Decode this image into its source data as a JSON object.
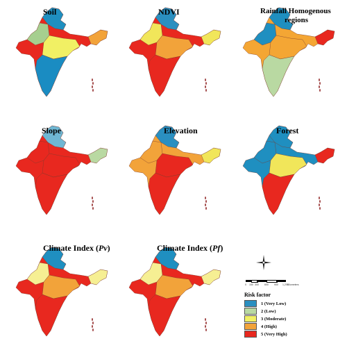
{
  "panels": [
    {
      "id": "soil",
      "title": "Soil",
      "base": "#e8281f",
      "north": "#1f8fc0",
      "northwest": "#a6cf8f",
      "mid": "#f1f064",
      "south": "#1a8cc2",
      "accent": "#f2a33a"
    },
    {
      "id": "ndvi",
      "title": "NDVI",
      "base": "#e8281f",
      "north": "#2a8fc0",
      "northwest": "#f1e65a",
      "mid": "#f2a33a",
      "south": "#e8281f",
      "accent": "#f1e65a"
    },
    {
      "id": "rainfall",
      "title_line1": "Rainfall Homogenous",
      "title_line2": "regions",
      "base": "#f4a634",
      "north": "#1f8fc0",
      "northwest": "#1f8fc0",
      "mid": "#f4a634",
      "south": "#b9d9a2",
      "accent": "#e8281f"
    },
    {
      "id": "slope",
      "title": "Slope",
      "base": "#e8281f",
      "north": "#6fb7d3",
      "northwest": "#e8281f",
      "mid": "#e8281f",
      "south": "#e8281f",
      "accent": "#b9d9a2"
    },
    {
      "id": "elevation",
      "title": "Elevation",
      "base": "#f2a33a",
      "north": "#2a8fc0",
      "northwest": "#f2a33a",
      "mid": "#e8281f",
      "south": "#e8281f",
      "accent": "#f1e65a"
    },
    {
      "id": "forest",
      "title": "Forest",
      "base": "#1f8fc0",
      "north": "#1f8fc0",
      "northwest": "#1f8fc0",
      "mid": "#f1e65a",
      "south": "#e8281f",
      "accent": "#e8281f"
    },
    {
      "id": "pv",
      "title_main": "Climate Index (",
      "title_italic": "Pv",
      "title_end": ")",
      "base": "#e8281f",
      "north": "#1f8fc0",
      "northwest": "#f6ef93",
      "mid": "#f2a33a",
      "south": "#e8281f",
      "accent": "#f6ef93"
    },
    {
      "id": "pf",
      "title_main": "Climate Index (",
      "title_italic": "Pf",
      "title_end": ")",
      "base": "#e8281f",
      "north": "#1f8fc0",
      "northwest": "#f6ef93",
      "mid": "#f2a33a",
      "south": "#e8281f",
      "accent": "#f6ef93"
    }
  ],
  "legend": {
    "title": "Risk factor",
    "items": [
      {
        "label": "1 (Very Low)",
        "color": "#2a8fc0"
      },
      {
        "label": "2 (Low)",
        "color": "#b9d9a2"
      },
      {
        "label": "3 (Moderate)",
        "color": "#f1f064"
      },
      {
        "label": "4 (High)",
        "color": "#f2a33a"
      },
      {
        "label": "5 (Very High)",
        "color": "#e8281f"
      }
    ]
  },
  "scale": {
    "ticks": [
      "0",
      "150",
      "300",
      "600",
      "900",
      "1,200",
      "Kilometers"
    ]
  }
}
